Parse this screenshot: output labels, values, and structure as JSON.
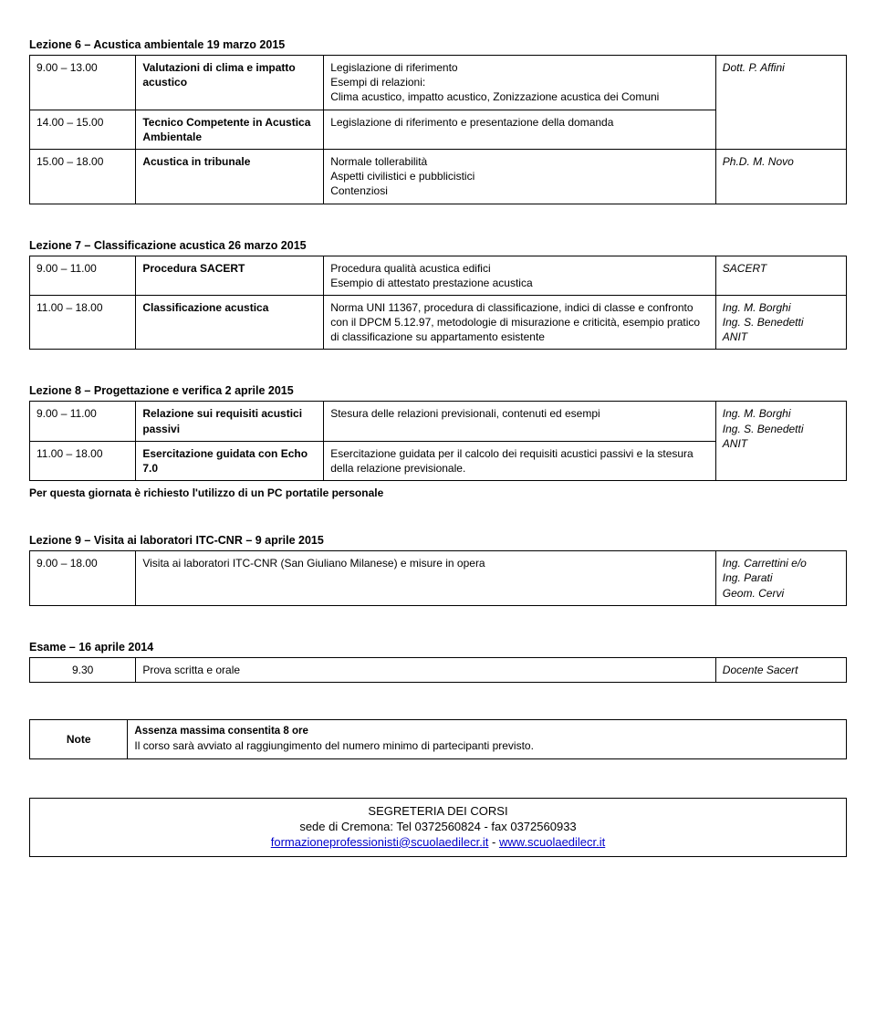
{
  "lesson6": {
    "title": "Lezione 6 – Acustica ambientale 19 marzo 2015",
    "rows": [
      {
        "time": "9.00 – 13.00",
        "topic": "Valutazioni di clima e impatto acustico",
        "desc": "Legislazione di riferimento\nEsempi di relazioni:\nClima acustico, impatto acustico, Zonizzazione acustica dei Comuni",
        "teacher": "Dott. P. Affini"
      },
      {
        "time": "14.00 – 15.00",
        "topic": "Tecnico Competente in Acustica Ambientale",
        "desc": "Legislazione di riferimento e presentazione della domanda",
        "teacher": ""
      },
      {
        "time": "15.00 – 18.00",
        "topic": "Acustica in tribunale",
        "desc": "Normale tollerabilità\nAspetti civilistici e pubblicistici\nContenziosi",
        "teacher": "Ph.D. M. Novo"
      }
    ]
  },
  "lesson7": {
    "title": "Lezione 7 – Classificazione acustica 26 marzo 2015",
    "rows": [
      {
        "time": "9.00 – 11.00",
        "topic": "Procedura SACERT",
        "desc": "Procedura qualità acustica edifici\nEsempio di attestato prestazione acustica",
        "teacher": "SACERT"
      },
      {
        "time": "11.00 – 18.00",
        "topic": "Classificazione acustica",
        "desc": "Norma UNI 11367, procedura di classificazione, indici di classe e confronto con il DPCM 5.12.97, metodologie di misurazione e criticità, esempio pratico di classificazione su appartamento esistente",
        "teacher": "Ing. M. Borghi\nIng. S. Benedetti\nANIT"
      }
    ]
  },
  "lesson8": {
    "title": "Lezione 8 – Progettazione e verifica 2 aprile 2015",
    "rows": [
      {
        "time": "9.00 – 11.00",
        "topic": "Relazione sui requisiti acustici passivi",
        "desc": "Stesura delle relazioni previsionali, contenuti ed esempi",
        "teacher": "Ing. M. Borghi\nIng. S. Benedetti\nANIT"
      },
      {
        "time": "11.00 – 18.00",
        "topic": "Esercitazione guidata con Echo 7.0",
        "desc": "Esercitazione guidata per il calcolo dei requisiti acustici passivi e la stesura della relazione previsionale.",
        "teacher": ""
      }
    ],
    "footnote": "Per questa giornata è richiesto l'utilizzo di un PC portatile personale"
  },
  "lesson9": {
    "title": "Lezione 9 – Visita ai laboratori ITC-CNR – 9 aprile 2015",
    "rows": [
      {
        "time": "9.00 – 18.00",
        "topic": "",
        "desc": "Visita ai laboratori ITC-CNR (San Giuliano Milanese) e misure in opera",
        "teacher": "Ing. Carrettini e/o\nIng. Parati\nGeom. Cervi"
      }
    ]
  },
  "exam": {
    "title": "Esame – 16 aprile 2014",
    "rows": [
      {
        "time": "9.30",
        "desc": "Prova scritta e orale",
        "teacher": "Docente Sacert"
      }
    ]
  },
  "note": {
    "label": "Note",
    "line1": "Assenza massima consentita 8 ore",
    "line2": "Il corso sarà avviato al raggiungimento del numero minimo di partecipanti previsto."
  },
  "secretariat": {
    "title": "SEGRETERIA DEI CORSI",
    "line1": "sede di Cremona: Tel 0372560824 - fax 0372560933",
    "email": "formazioneprofessionisti@scuolaedilecr.it",
    "separator": " - ",
    "url": "www.scuolaedilecr.it"
  }
}
